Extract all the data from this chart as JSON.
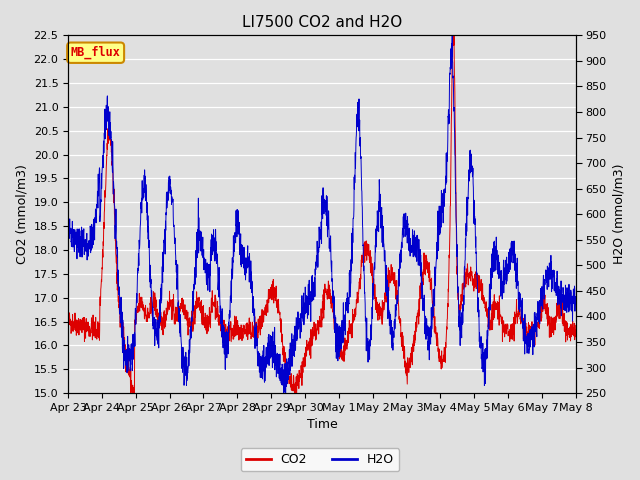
{
  "title": "LI7500 CO2 and H2O",
  "xlabel": "Time",
  "ylabel_left": "CO2 (mmol/m3)",
  "ylabel_right": "H2O (mmol/m3)",
  "co2_ylim": [
    15.0,
    22.5
  ],
  "h2o_ylim": [
    250,
    950
  ],
  "co2_yticks": [
    15.0,
    15.5,
    16.0,
    16.5,
    17.0,
    17.5,
    18.0,
    18.5,
    19.0,
    19.5,
    20.0,
    20.5,
    21.0,
    21.5,
    22.0,
    22.5
  ],
  "h2o_yticks": [
    250,
    300,
    350,
    400,
    450,
    500,
    550,
    600,
    650,
    700,
    750,
    800,
    850,
    900,
    950
  ],
  "xtick_labels": [
    "Apr 23",
    "Apr 24",
    "Apr 25",
    "Apr 26",
    "Apr 27",
    "Apr 28",
    "Apr 29",
    "Apr 30",
    "May 1",
    "May 2",
    "May 3",
    "May 4",
    "May 5",
    "May 6",
    "May 7",
    "May 8"
  ],
  "background_color": "#e0e0e0",
  "plot_bg_color": "#e0e0e0",
  "grid_color": "#ffffff",
  "co2_color": "#dd0000",
  "h2o_color": "#0000cc",
  "legend_label_co2": "CO2",
  "legend_label_h2o": "H2O",
  "annotation_text": "MB_flux",
  "annotation_bg": "#ffff88",
  "annotation_border": "#cc8800",
  "title_fontsize": 11,
  "tick_fontsize": 8,
  "label_fontsize": 9
}
